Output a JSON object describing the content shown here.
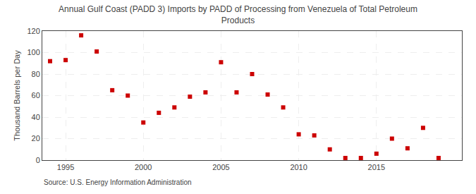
{
  "chart_data": {
    "type": "scatter",
    "title": "Annual Gulf Coast (PADD 3) Imports by PADD of Processing from Venezuela of Total Petroleum\nProducts",
    "y_label": "Thousand Barrels per Day",
    "annotations": [
      "Source: U.S. Energy Information Administration"
    ],
    "x": [
      1994,
      1995,
      1996,
      1997,
      1998,
      1999,
      2000,
      2001,
      2002,
      2003,
      2004,
      2005,
      2006,
      2007,
      2008,
      2009,
      2010,
      2011,
      2012,
      2013,
      2014,
      2015,
      2016,
      2017,
      2018,
      2019
    ],
    "values": [
      92,
      93,
      116,
      101,
      65,
      60,
      35,
      44,
      49,
      59,
      63,
      91,
      63,
      80,
      61,
      49,
      24,
      23,
      10,
      2,
      2,
      6,
      20,
      11,
      30,
      2
    ],
    "color": "#cc0000",
    "marker": "square",
    "xlim": [
      1993.5,
      2020.5
    ],
    "ylim": [
      0,
      120
    ],
    "xticks": [
      1995,
      2000,
      2005,
      2010,
      2015
    ],
    "yticks": [
      0,
      20,
      40,
      60,
      80,
      100,
      120
    ],
    "grid": true
  }
}
